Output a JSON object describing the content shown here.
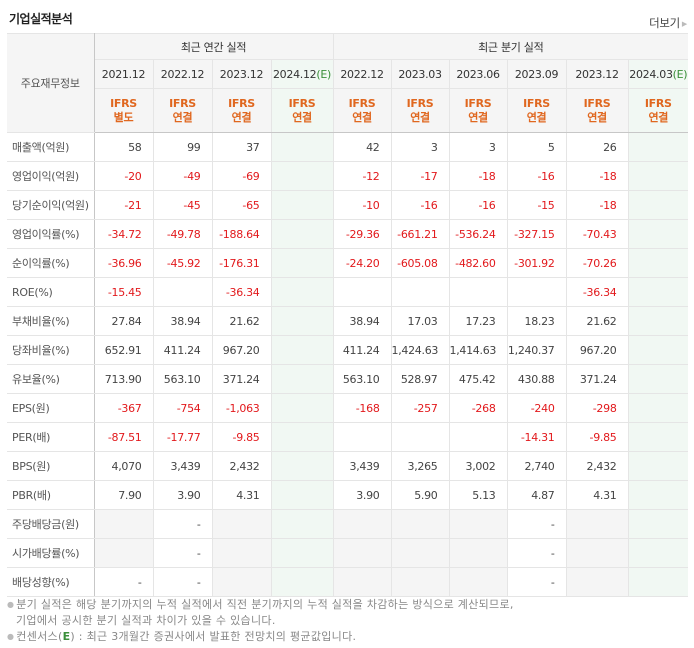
{
  "header": {
    "title": "기업실적분석",
    "more_label": "더보기",
    "more_arrow": "▶"
  },
  "table": {
    "row_header_label": "주요재무정보",
    "groups": [
      {
        "label": "최근 연간 실적",
        "span": 4
      },
      {
        "label": "최근 분기 실적",
        "span": 6
      }
    ],
    "columns": [
      {
        "date": "2021.12",
        "estimate": false,
        "ifrs": "IFRS",
        "basis": "별도"
      },
      {
        "date": "2022.12",
        "estimate": false,
        "ifrs": "IFRS",
        "basis": "연결"
      },
      {
        "date": "2023.12",
        "estimate": false,
        "ifrs": "IFRS",
        "basis": "연결"
      },
      {
        "date": "2024.12",
        "estimate": true,
        "estimate_mark": "(E)",
        "ifrs": "IFRS",
        "basis": "연결"
      },
      {
        "date": "2022.12",
        "estimate": false,
        "ifrs": "IFRS",
        "basis": "연결"
      },
      {
        "date": "2023.03",
        "estimate": false,
        "ifrs": "IFRS",
        "basis": "연결"
      },
      {
        "date": "2023.06",
        "estimate": false,
        "ifrs": "IFRS",
        "basis": "연결"
      },
      {
        "date": "2023.09",
        "estimate": false,
        "ifrs": "IFRS",
        "basis": "연결"
      },
      {
        "date": "2023.12",
        "estimate": false,
        "ifrs": "IFRS",
        "basis": "연결"
      },
      {
        "date": "2024.03",
        "estimate": true,
        "estimate_mark": "(E)",
        "ifrs": "IFRS",
        "basis": "연결"
      }
    ],
    "rows": [
      {
        "label": "매출액(억원)",
        "values": [
          "58",
          "99",
          "37",
          "",
          "42",
          "3",
          "3",
          "5",
          "26",
          ""
        ]
      },
      {
        "label": "영업이익(억원)",
        "values": [
          "-20",
          "-49",
          "-69",
          "",
          "-12",
          "-17",
          "-18",
          "-16",
          "-18",
          ""
        ]
      },
      {
        "label": "당기순이익(억원)",
        "values": [
          "-21",
          "-45",
          "-65",
          "",
          "-10",
          "-16",
          "-16",
          "-15",
          "-18",
          ""
        ]
      },
      {
        "label": "영업이익률(%)",
        "group_start": true,
        "values": [
          "-34.72",
          "-49.78",
          "-188.64",
          "",
          "-29.36",
          "-661.21",
          "-536.24",
          "-327.15",
          "-70.43",
          ""
        ]
      },
      {
        "label": "순이익률(%)",
        "values": [
          "-36.96",
          "-45.92",
          "-176.31",
          "",
          "-24.20",
          "-605.08",
          "-482.60",
          "-301.92",
          "-70.26",
          ""
        ]
      },
      {
        "label": "ROE(%)",
        "values": [
          "-15.45",
          "",
          "-36.34",
          "",
          "",
          "",
          "",
          "",
          "-36.34",
          ""
        ]
      },
      {
        "label": "부채비율(%)",
        "group_start": true,
        "values": [
          "27.84",
          "38.94",
          "21.62",
          "",
          "38.94",
          "17.03",
          "17.23",
          "18.23",
          "21.62",
          ""
        ]
      },
      {
        "label": "당좌비율(%)",
        "values": [
          "652.91",
          "411.24",
          "967.20",
          "",
          "411.24",
          "1,424.63",
          "1,414.63",
          "1,240.37",
          "967.20",
          ""
        ]
      },
      {
        "label": "유보율(%)",
        "values": [
          "713.90",
          "563.10",
          "371.24",
          "",
          "563.10",
          "528.97",
          "475.42",
          "430.88",
          "371.24",
          ""
        ]
      },
      {
        "label": "EPS(원)",
        "group_start": true,
        "values": [
          "-367",
          "-754",
          "-1,063",
          "",
          "-168",
          "-257",
          "-268",
          "-240",
          "-298",
          ""
        ]
      },
      {
        "label": "PER(배)",
        "values": [
          "-87.51",
          "-17.77",
          "-9.85",
          "",
          "",
          "",
          "",
          "-14.31",
          "-9.85",
          ""
        ]
      },
      {
        "label": "BPS(원)",
        "values": [
          "4,070",
          "3,439",
          "2,432",
          "",
          "3,439",
          "3,265",
          "3,002",
          "2,740",
          "2,432",
          ""
        ]
      },
      {
        "label": "PBR(배)",
        "values": [
          "7.90",
          "3.90",
          "4.31",
          "",
          "3.90",
          "5.90",
          "5.13",
          "4.87",
          "4.31",
          ""
        ]
      },
      {
        "label": "주당배당금(원)",
        "group_start": true,
        "gray": [
          0,
          2,
          4,
          5,
          6,
          8
        ],
        "values": [
          "",
          "-",
          "",
          "",
          "",
          "",
          "",
          "-",
          "",
          ""
        ]
      },
      {
        "label": "시가배당률(%)",
        "gray": [
          0,
          2,
          4,
          5,
          6,
          8
        ],
        "values": [
          "",
          "-",
          "",
          "",
          "",
          "",
          "",
          "-",
          "",
          ""
        ]
      },
      {
        "label": "배당성향(%)",
        "gray": [
          2,
          4,
          5,
          6,
          8
        ],
        "values": [
          "-",
          "-",
          "",
          "",
          "",
          "",
          "",
          "-",
          "",
          ""
        ]
      }
    ]
  },
  "notes": {
    "line1": "분기 실적은 해당 분기까지의 누적 실적에서 직전 분기까지의 누적 실적을 차감하는 방식으로 계산되므로,",
    "line2": "기업에서 공시한 분기 실적과 차이가 있을 수 있습니다.",
    "line3_prefix": "컨센서스(",
    "line3_mark": "E",
    "line3_suffix": ") : 최근 3개월간 증권사에서 발표한 전망치의 평균값입니다."
  },
  "colors": {
    "negative": "#e2191c",
    "ifrs": "#e0671f",
    "estimate_bg": "#f1f8f3",
    "estimate_mark": "#3a8f3a",
    "header_bg": "#f5f5f5"
  }
}
